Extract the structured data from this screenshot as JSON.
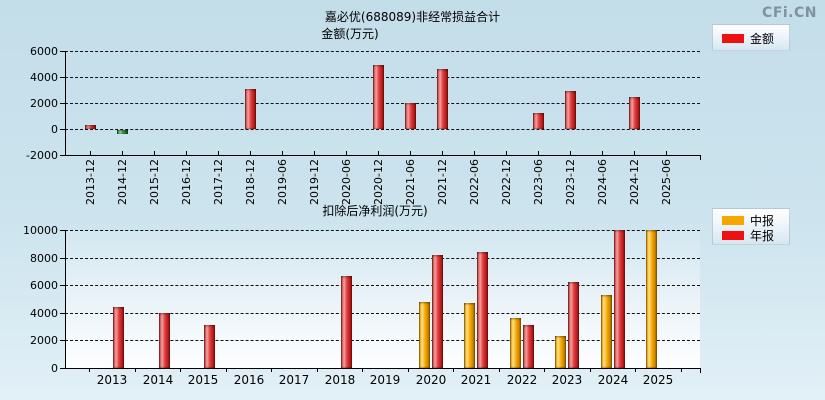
{
  "page": {
    "title": "嘉必优(688089)非经常损益合计",
    "watermark": "CFi.CN"
  },
  "chart_data": [
    {
      "type": "bar",
      "title": "金额(万元)",
      "legend": [
        {
          "label": "金额",
          "color": "#ee1111"
        }
      ],
      "categories": [
        "2013-12",
        "2014-12",
        "2015-12",
        "2016-12",
        "2017-12",
        "2018-12",
        "2019-06",
        "2019-12",
        "2020-06",
        "2020-12",
        "2021-06",
        "2021-12",
        "2022-06",
        "2022-12",
        "2023-06",
        "2023-12",
        "2024-06",
        "2024-12",
        "2025-06"
      ],
      "values": [
        300,
        -300,
        null,
        null,
        null,
        3100,
        null,
        null,
        null,
        4900,
        2000,
        4600,
        null,
        null,
        1200,
        2900,
        null,
        2450,
        null
      ],
      "bar_color": "#e03a3a",
      "negative_color": "#2f9e44",
      "ylim": [
        -2000,
        6000
      ],
      "yticks": [
        6000,
        4000,
        2000,
        0,
        -2000
      ],
      "grid": "horizontal-dashed",
      "x_label_rotation": -90,
      "legend_position": "top-right"
    },
    {
      "type": "bar",
      "title": "扣除后净利润(万元)",
      "categories": [
        "2013",
        "2014",
        "2015",
        "2016",
        "2017",
        "2018",
        "2019",
        "2020",
        "2021",
        "2022",
        "2023",
        "2024",
        "2025"
      ],
      "series": [
        {
          "name": "中报",
          "color": "#f7a600",
          "values": [
            null,
            null,
            null,
            null,
            null,
            null,
            null,
            4800,
            4700,
            3600,
            2300,
            5300,
            10000
          ]
        },
        {
          "name": "年报",
          "color": "#e03a3a",
          "values": [
            4400,
            4000,
            3100,
            null,
            null,
            6700,
            null,
            8200,
            8400,
            3100,
            6200,
            10000,
            null
          ]
        }
      ],
      "ylim": [
        0,
        10000
      ],
      "yticks": [
        10000,
        8000,
        6000,
        4000,
        2000,
        0
      ],
      "grid": "horizontal-dashed",
      "legend_position": "top-right"
    }
  ]
}
